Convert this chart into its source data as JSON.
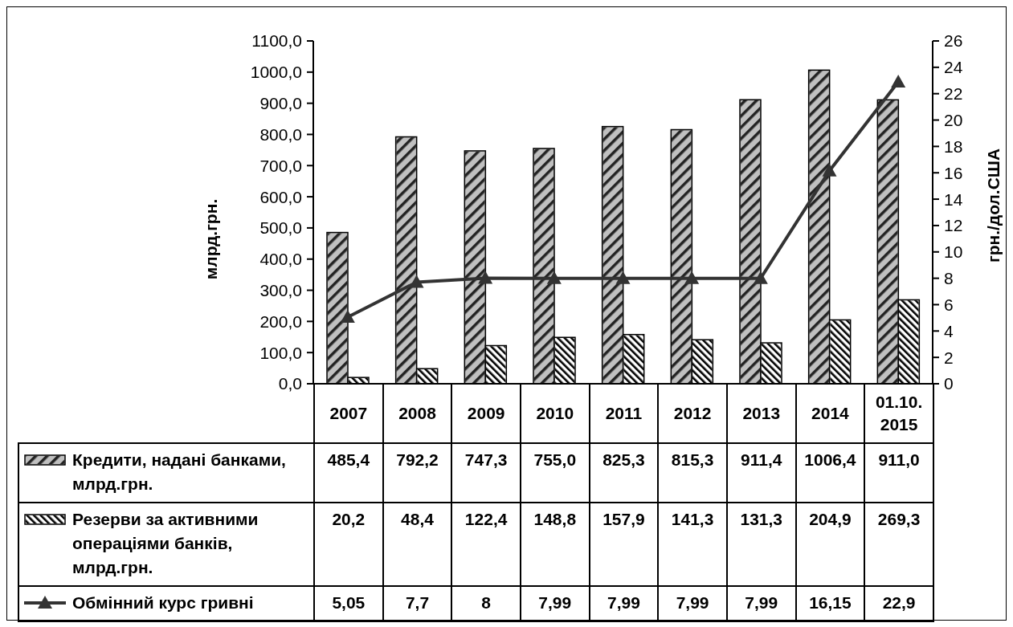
{
  "chart_data": {
    "type": "bar",
    "ylabel": "млрд.грн.",
    "y2label": "грн./дол.США",
    "categories": [
      "2007",
      "2008",
      "2009",
      "2010",
      "2011",
      "2012",
      "2013",
      "2014",
      "01.10. 2015"
    ],
    "series": [
      {
        "name": "Кредити, надані банками, млрд.грн.",
        "color": "#c0c0c0",
        "values": [
          485.4,
          792.2,
          747.3,
          755.0,
          825.3,
          815.3,
          911.4,
          1006.4,
          911.0
        ],
        "value_labels": [
          "485,4",
          "792,2",
          "747,3",
          "755,0",
          "825,3",
          "815,3",
          "911,4",
          "1006,4",
          "911,0"
        ]
      },
      {
        "name": "Резерви за активними операціями банків, млрд.грн.",
        "color": "#ffffff",
        "values": [
          20.2,
          48.4,
          122.4,
          148.8,
          157.9,
          141.3,
          131.3,
          204.9,
          269.3
        ],
        "value_labels": [
          "20,2",
          "48,4",
          "122,4",
          "148,8",
          "157,9",
          "141,3",
          "131,3",
          "204,9",
          "269,3"
        ]
      },
      {
        "name": "Обмінний курс гривні",
        "type": "line",
        "axis": "y2",
        "color": "#333333",
        "values": [
          5.05,
          7.7,
          8,
          7.99,
          7.99,
          7.99,
          7.99,
          16.15,
          22.9
        ],
        "value_labels": [
          "5,05",
          "7,7",
          "8",
          "7,99",
          "7,99",
          "7,99",
          "7,99",
          "16,15",
          "22,9"
        ]
      }
    ],
    "ylim": [
      0,
      1100
    ],
    "yticks": [
      {
        "value": 0,
        "label": "0,0"
      },
      {
        "value": 100,
        "label": "100,0"
      },
      {
        "value": 200,
        "label": "200,0"
      },
      {
        "value": 300,
        "label": "300,0"
      },
      {
        "value": 400,
        "label": "400,0"
      },
      {
        "value": 500,
        "label": "500,0"
      },
      {
        "value": 600,
        "label": "600,0"
      },
      {
        "value": 700,
        "label": "700,0"
      },
      {
        "value": 800,
        "label": "800,0"
      },
      {
        "value": 900,
        "label": "900,0"
      },
      {
        "value": 1000,
        "label": "1000,0"
      },
      {
        "value": 1100,
        "label": "1100,0"
      }
    ],
    "y2lim": [
      0,
      26
    ],
    "y2ticks": [
      0,
      2,
      4,
      6,
      8,
      10,
      12,
      14,
      16,
      18,
      20,
      22,
      24,
      26
    ],
    "marker": "triangle",
    "legend": "bottom"
  }
}
